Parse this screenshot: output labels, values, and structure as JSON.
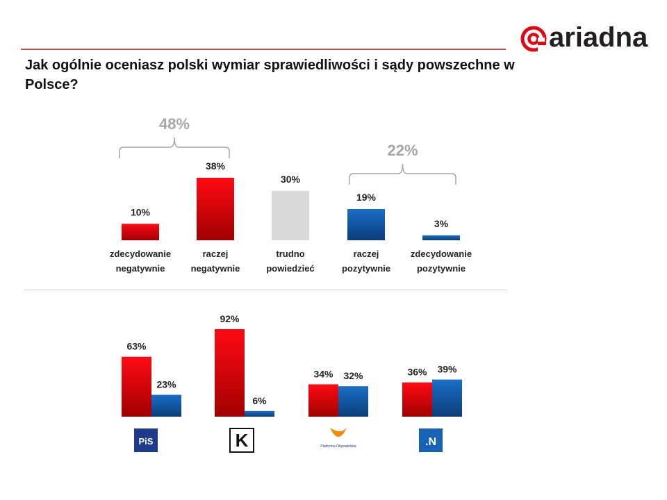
{
  "brand": {
    "logo_text": "ariadna"
  },
  "question": "Jak ogólnie oceniasz polski wymiar sprawiedliwości i sądy powszechne w Polsce?",
  "colors": {
    "negative": "#e8000a",
    "neutral": "#d9d9d9",
    "positive": "#1060b8",
    "bracket": "#a6a6a6",
    "rule": "#c0504d"
  },
  "chart_data": [
    {
      "type": "bar",
      "title": "Jak ogólnie oceniasz polski wymiar sprawiedliwości i sądy powszechne w Polsce?",
      "categories": [
        [
          "zdecydowanie",
          "negatywnie"
        ],
        [
          "raczej",
          "negatywnie"
        ],
        [
          "trudno",
          "powiedzieć"
        ],
        [
          "raczej",
          "pozytywnie"
        ],
        [
          "zdecydowanie",
          "pozytywnie"
        ]
      ],
      "values": [
        10,
        38,
        30,
        19,
        3
      ],
      "value_labels": [
        "10%",
        "38%",
        "30%",
        "19%",
        "3%"
      ],
      "groups": [
        {
          "label": "48%",
          "categories": [
            0,
            1
          ]
        },
        {
          "label": "22%",
          "categories": [
            3,
            4
          ]
        }
      ],
      "ylim": [
        0,
        40
      ]
    },
    {
      "type": "bar",
      "categories": [
        "PiS",
        "Kukiz'15",
        "Platforma Obywatelska",
        "Nowoczesna"
      ],
      "logo_texts": [
        "PiS",
        "K",
        "Platforma Obywatelska",
        ".N"
      ],
      "series": [
        {
          "name": "negatywnie",
          "values": [
            63,
            92,
            34,
            36
          ],
          "labels": [
            "63%",
            "92%",
            "34%",
            "36%"
          ]
        },
        {
          "name": "pozytywnie",
          "values": [
            23,
            6,
            32,
            39
          ],
          "labels": [
            "23%",
            "6%",
            "32%",
            "39%"
          ]
        }
      ],
      "ylim": [
        0,
        100
      ]
    }
  ]
}
